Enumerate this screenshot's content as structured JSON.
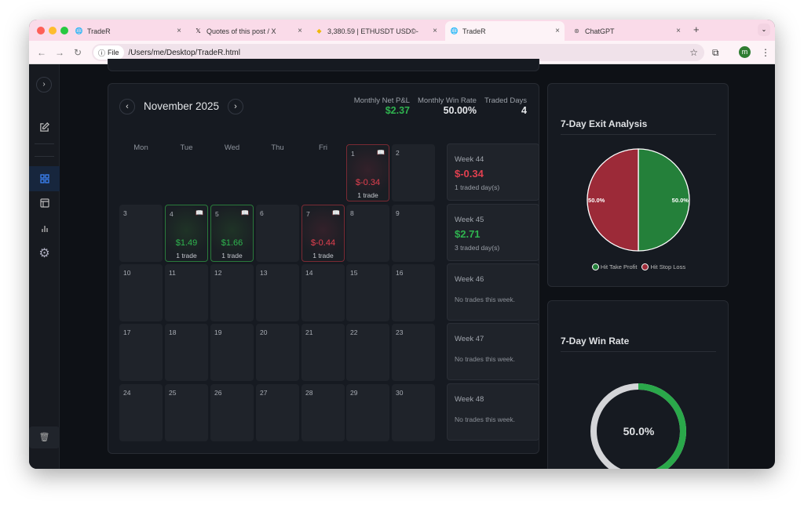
{
  "browser": {
    "tabs": [
      {
        "title": "TradeR",
        "icon": "globe-icon",
        "active": false
      },
      {
        "title": "Quotes of this post / X",
        "icon": "x-logo-icon",
        "active": false
      },
      {
        "title": "3,380.59 | ETHUSDT USD©-",
        "icon": "binance-icon",
        "active": false
      },
      {
        "title": "TradeR",
        "icon": "globe-icon",
        "active": true
      },
      {
        "title": "ChatGPT",
        "icon": "chatgpt-icon",
        "active": false
      }
    ],
    "new_tab": "+",
    "url_chip": "File",
    "url": "/Users/me/Desktop/TradeR.html",
    "profile_initial": "m"
  },
  "calendar": {
    "title": "November 2025",
    "stats": [
      {
        "label": "Monthly Net P&L",
        "value": "$2.37",
        "color": "#2fb34f"
      },
      {
        "label": "Monthly Win Rate",
        "value": "50.00%",
        "color": "#e6e8eb"
      },
      {
        "label": "Traded Days",
        "value": "4",
        "color": "#e6e8eb"
      }
    ],
    "weekdays": [
      "Mon",
      "Tue",
      "Wed",
      "Thu",
      "Fri",
      "Sat",
      "Sun"
    ],
    "first_weekday_index": 5,
    "days_in_month": 30,
    "trade_days": {
      "1": {
        "pl": "$-0.34",
        "trades": "1 trade",
        "result": "loss"
      },
      "4": {
        "pl": "$1.49",
        "trades": "1 trade",
        "result": "win"
      },
      "5": {
        "pl": "$1.66",
        "trades": "1 trade",
        "result": "win"
      },
      "7": {
        "pl": "$-0.44",
        "trades": "1 trade",
        "result": "loss"
      }
    },
    "weeks": [
      {
        "label": "Week 44",
        "pl": "$-0.34",
        "result": "loss",
        "sub": "1 traded day(s)"
      },
      {
        "label": "Week 45",
        "pl": "$2.71",
        "result": "win",
        "sub": "3 traded day(s)"
      },
      {
        "label": "Week 46",
        "empty": "No trades this week."
      },
      {
        "label": "Week 47",
        "empty": "No trades this week."
      },
      {
        "label": "Week 48",
        "empty": "No trades this week."
      }
    ]
  },
  "exit_analysis": {
    "title": "7-Day Exit Analysis",
    "chart_data": {
      "type": "pie",
      "slices": [
        {
          "name": "Hit Take Profit",
          "value": 50.0,
          "label": "50.0%",
          "color": "#24803a"
        },
        {
          "name": "Hit Stop Loss",
          "value": 50.0,
          "label": "50.0%",
          "color": "#9c2a38"
        }
      ]
    }
  },
  "win_rate": {
    "title": "7-Day Win Rate",
    "value_label": "50.0%",
    "chart_data": {
      "type": "pie",
      "value": 50.0,
      "colors": {
        "win": "#2aa84a",
        "rest": "#d4d5d8"
      }
    }
  }
}
